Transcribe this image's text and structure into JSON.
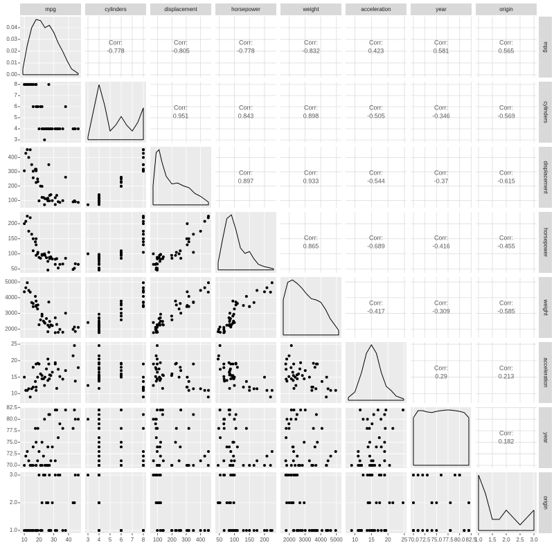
{
  "chart_data": {
    "type": "pairs",
    "variables": [
      "mpg",
      "cylinders",
      "displacement",
      "horsepower",
      "weight",
      "acceleration",
      "year",
      "origin"
    ],
    "corr_label": "Corr:",
    "correlations": [
      [
        -0.778,
        -0.805,
        -0.778,
        -0.832,
        0.423,
        0.581,
        0.565
      ],
      [
        0.951,
        0.843,
        0.898,
        -0.505,
        -0.346,
        -0.569
      ],
      [
        0.897,
        0.933,
        -0.544,
        -0.37,
        -0.615
      ],
      [
        0.865,
        -0.689,
        -0.416,
        -0.455
      ],
      [
        -0.417,
        -0.309,
        -0.585
      ],
      [
        0.29,
        0.213
      ],
      [
        0.182
      ]
    ],
    "axes": [
      {
        "lim": [
          7.12,
          48.48
        ],
        "xticks": [
          10,
          20,
          30,
          40
        ],
        "yticks": [
          10,
          20,
          30,
          40
        ]
      },
      {
        "lim": [
          2.75,
          8.25
        ],
        "xticks": [
          3,
          4,
          5,
          6,
          7,
          8
        ],
        "yticks": [
          3,
          4,
          5,
          6,
          7,
          8
        ]
      },
      {
        "lim": [
          48.65,
          474.35
        ],
        "xticks": [
          100,
          200,
          300,
          400
        ],
        "yticks": [
          100,
          200,
          300,
          400
        ]
      },
      {
        "lim": [
          36.8,
          239.2
        ],
        "xticks": [
          50,
          100,
          150,
          200
        ],
        "yticks": [
          50,
          100,
          150,
          200
        ]
      },
      {
        "lim": [
          1437,
          5316
        ],
        "xticks": [
          2000,
          3000,
          4000,
          5000
        ],
        "yticks": [
          2000,
          3000,
          4000,
          5000
        ]
      },
      {
        "lim": [
          7.16,
          25.64
        ],
        "xticks": [
          10,
          15,
          20,
          25
        ],
        "yticks": [
          10,
          15,
          20,
          25
        ]
      },
      {
        "lim": [
          69.4,
          82.6
        ],
        "xticks": [
          {
            "value": 70,
            "label": "70.0"
          },
          72.5,
          {
            "value": 75,
            "label": "75.0"
          },
          77.5,
          {
            "value": 80,
            "label": "80.0"
          },
          82.5
        ],
        "yticks": [
          {
            "value": 70,
            "label": "70.0"
          },
          72.5,
          {
            "value": 75,
            "label": "75.0"
          },
          77.5,
          {
            "value": 80,
            "label": "80.0"
          },
          82.5
        ]
      },
      {
        "lim": [
          0.9,
          3.1
        ],
        "xticks": [
          {
            "value": 1,
            "label": "1.0"
          },
          1.5,
          {
            "value": 2,
            "label": "2.0"
          },
          2.5,
          {
            "value": 3,
            "label": "3.0"
          }
        ],
        "yticks": [
          {
            "value": 1,
            "label": "1.0"
          },
          {
            "value": 2,
            "label": "2.0"
          },
          {
            "value": 3,
            "label": "3.0"
          }
        ]
      }
    ],
    "densities": [
      {
        "x": [
          9,
          12,
          15,
          18,
          21,
          24,
          27,
          30,
          33,
          36,
          39,
          42,
          46.6
        ],
        "y": [
          0.005,
          0.025,
          0.04,
          0.047,
          0.046,
          0.04,
          0.042,
          0.036,
          0.027,
          0.02,
          0.012,
          0.005,
          0.001
        ],
        "ylim": [
          -0.0024,
          0.0494
        ],
        "yticks": [
          {
            "value": 0,
            "label": "0.00"
          },
          {
            "value": 0.01,
            "label": "0.01"
          },
          {
            "value": 0.02,
            "label": "0.02"
          },
          {
            "value": 0.03,
            "label": "0.03"
          },
          {
            "value": 0.04,
            "label": "0.04"
          }
        ]
      },
      {
        "x": [
          3,
          3.5,
          4,
          4.5,
          5,
          5.5,
          6,
          6.5,
          7,
          7.5,
          8
        ],
        "y": [
          0.05,
          0.5,
          0.95,
          0.6,
          0.15,
          0.25,
          0.4,
          0.25,
          0.15,
          0.3,
          0.55
        ],
        "ylim": [
          -0.05,
          1.0
        ]
      },
      {
        "x": [
          68,
          90,
          110,
          130,
          160,
          200,
          240,
          280,
          320,
          360,
          400,
          455
        ],
        "y": [
          0.002,
          0.0055,
          0.0058,
          0.0045,
          0.003,
          0.0022,
          0.0023,
          0.002,
          0.0018,
          0.0012,
          0.0009,
          0.0003
        ],
        "ylim": [
          -0.0003,
          0.0061
        ]
      },
      {
        "x": [
          46,
          60,
          75,
          90,
          105,
          120,
          135,
          150,
          165,
          180,
          200,
          230
        ],
        "y": [
          0.002,
          0.008,
          0.014,
          0.015,
          0.011,
          0.006,
          0.0045,
          0.005,
          0.003,
          0.0015,
          0.0009,
          0.0003
        ],
        "ylim": [
          -0.0008,
          0.0158
        ]
      },
      {
        "x": [
          1613,
          1900,
          2200,
          2500,
          2800,
          3100,
          3400,
          3700,
          4000,
          4300,
          4600,
          5140
        ],
        "y": [
          0.0003,
          0.00045,
          0.00047,
          0.00044,
          0.0004,
          0.00035,
          0.00031,
          0.0003,
          0.00028,
          0.00022,
          0.00014,
          4e-05
        ],
        "ylim": [
          -2.5e-05,
          0.000495
        ]
      },
      {
        "x": [
          8,
          10,
          12,
          13.5,
          15,
          16.5,
          18,
          19.5,
          21,
          22.5,
          24.8
        ],
        "y": [
          0.01,
          0.03,
          0.1,
          0.17,
          0.2,
          0.17,
          0.1,
          0.05,
          0.035,
          0.015,
          0.005
        ],
        "ylim": [
          -0.01,
          0.21
        ]
      },
      {
        "x": [
          70,
          71,
          72,
          73,
          74,
          75,
          76,
          77,
          78,
          79,
          80,
          81,
          82
        ],
        "y": [
          0.075,
          0.086,
          0.086,
          0.084,
          0.083,
          0.085,
          0.086,
          0.087,
          0.087,
          0.086,
          0.085,
          0.083,
          0.075
        ],
        "ylim": [
          -0.0045,
          0.0915
        ]
      },
      {
        "x": [
          1,
          1.25,
          1.5,
          1.75,
          2,
          2.25,
          2.5,
          2.75,
          3
        ],
        "y": [
          1.5,
          1.0,
          0.3,
          0.3,
          0.55,
          0.35,
          0.15,
          0.35,
          0.55
        ],
        "ylim": [
          -0.075,
          1.575
        ]
      }
    ],
    "columns": [
      [
        18,
        15,
        18,
        16,
        14,
        24,
        22,
        27,
        26,
        25,
        21,
        10,
        28,
        13,
        31,
        19,
        20,
        23,
        11,
        29,
        16,
        26,
        18,
        33,
        17.5,
        43.1,
        36.1,
        19.2,
        27.2,
        44.6,
        46.6,
        23.7,
        34.1,
        26.6,
        38,
        32,
        44,
        31,
        12,
        22
      ],
      [
        8,
        8,
        8,
        8,
        8,
        4,
        6,
        4,
        4,
        4,
        6,
        8,
        4,
        8,
        4,
        6,
        4,
        4,
        8,
        4,
        6,
        4,
        6,
        4,
        8,
        4,
        4,
        6,
        4,
        4,
        4,
        3,
        4,
        8,
        6,
        4,
        4,
        4,
        8,
        4
      ],
      [
        307,
        350,
        318,
        304,
        454,
        113,
        198,
        97,
        97,
        110,
        200,
        307,
        140,
        400,
        71,
        250,
        97,
        120,
        429,
        98,
        258,
        116,
        225,
        91,
        318,
        90,
        98,
        231,
        135,
        91,
        86,
        70,
        86,
        350,
        262,
        135,
        97,
        119,
        455,
        121
      ],
      [
        130,
        165,
        150,
        150,
        220,
        95,
        95,
        88,
        46,
        87,
        85,
        200,
        90,
        175,
        65,
        100,
        88,
        97,
        208,
        83,
        110,
        75,
        95,
        53,
        140,
        48,
        66,
        105,
        84,
        67,
        65,
        100,
        65,
        105,
        85,
        84,
        52,
        82,
        225,
        98
      ],
      [
        3504,
        3693,
        3436,
        3433,
        4354,
        2372,
        2833,
        2130,
        1835,
        2672,
        2587,
        4376,
        2264,
        4464,
        1773,
        3282,
        2279,
        2506,
        4633,
        2219,
        3632,
        2246,
        3785,
        1795,
        4080,
        1985,
        1800,
        3535,
        2490,
        1850,
        2110,
        2420,
        1975,
        3725,
        3015,
        2295,
        2130,
        2720,
        4951,
        2945
      ],
      [
        12,
        11.5,
        11,
        12,
        9,
        15,
        15.5,
        14.5,
        20.5,
        17.5,
        16,
        15,
        15.5,
        11.5,
        19,
        15,
        19,
        14.5,
        11,
        16.5,
        18,
        14,
        19,
        17.4,
        13.7,
        21.5,
        14.4,
        19.2,
        15.7,
        13.8,
        17.9,
        12.5,
        15.2,
        19,
        17,
        11.6,
        24.6,
        19.4,
        11,
        14.5
      ],
      [
        70,
        70,
        70,
        70,
        70,
        70,
        70,
        70,
        70,
        70,
        70,
        70,
        71,
        71,
        71,
        71,
        73,
        72,
        72,
        74,
        74,
        74,
        75,
        76,
        78,
        78,
        78,
        78,
        81,
        80,
        80,
        80,
        79,
        81,
        82,
        82,
        82,
        82,
        73,
        75
      ],
      [
        1,
        1,
        1,
        1,
        1,
        3,
        1,
        3,
        2,
        2,
        1,
        1,
        1,
        1,
        3,
        1,
        3,
        3,
        1,
        2,
        1,
        2,
        1,
        3,
        1,
        2,
        1,
        1,
        1,
        3,
        3,
        3,
        3,
        1,
        1,
        1,
        2,
        1,
        1,
        2
      ]
    ],
    "point_color": "#000000",
    "density_color": "#000000",
    "grid": true
  }
}
